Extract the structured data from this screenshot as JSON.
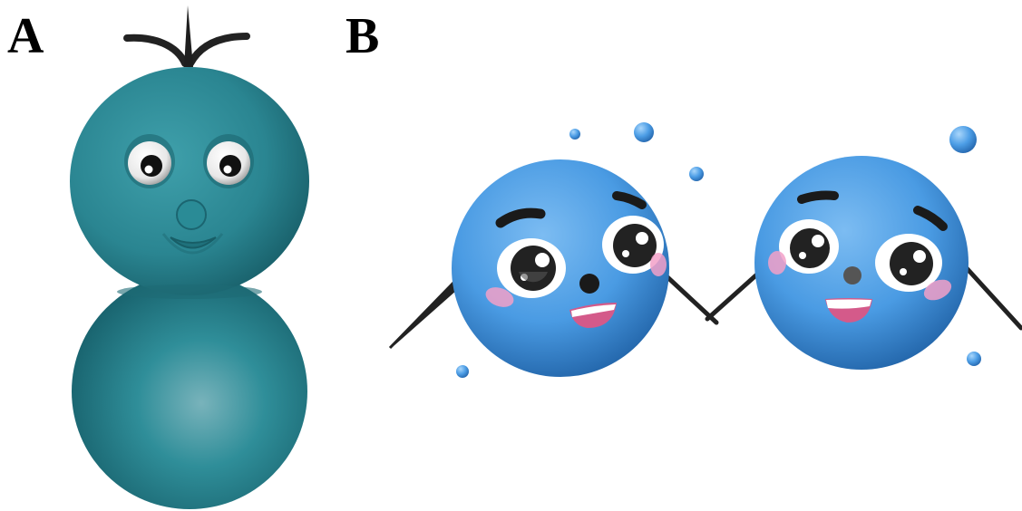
{
  "panels": [
    {
      "label": "A",
      "subject": "teal-snowman-figure"
    },
    {
      "label": "B",
      "subject": "two-blue-ball-characters-holding-hands"
    }
  ],
  "colors": {
    "teal_body": "#2b8a96",
    "teal_dark": "#1a5e68",
    "blue_ball": "#4d9ee6",
    "blue_dark": "#1f5fa6",
    "blush": "#f2a0c8",
    "mouth": "#d45a8a",
    "arm": "#333333"
  }
}
